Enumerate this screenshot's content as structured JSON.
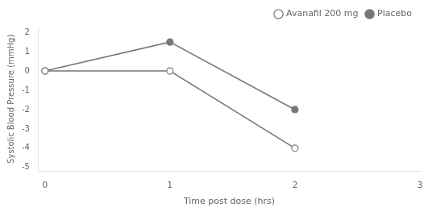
{
  "chart_data": {
    "type": "line",
    "x": [
      0,
      1,
      2
    ],
    "series": [
      {
        "name": "Avanafil 200 mg",
        "color": "#777777",
        "marker": "circle_open",
        "values": [
          0,
          0,
          -4
        ]
      },
      {
        "name": "Placebo",
        "color": "#777777",
        "marker": "circle",
        "values": [
          0,
          1.5,
          -2
        ]
      }
    ],
    "x_label": "Time post dose (hrs)",
    "y_label": "Systolic Blood Pressure (mmHg)",
    "xlim": [
      -0.05,
      3
    ],
    "xticks": [
      0,
      1,
      2,
      3
    ],
    "ylim": [
      -5.2,
      2.3
    ],
    "yticks": [
      -5,
      -4,
      -3,
      -2,
      -1,
      0,
      1,
      2
    ],
    "grid": false,
    "legend": "upper right"
  }
}
